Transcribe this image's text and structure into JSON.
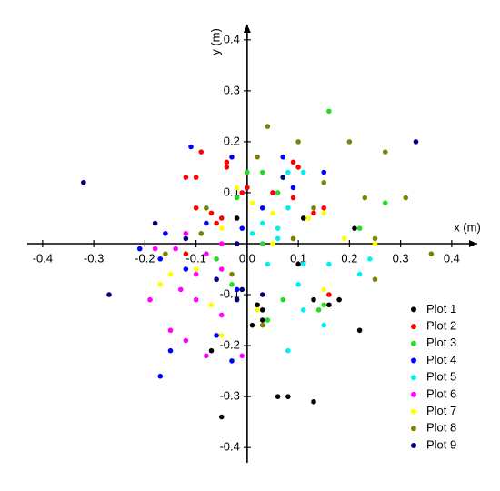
{
  "chart_data": {
    "type": "scatter",
    "x_label": "x (m)",
    "y_label": "y (m)",
    "xlim": [
      -0.43,
      0.45
    ],
    "ylim": [
      -0.43,
      0.43
    ],
    "xticks": [
      -0.4,
      -0.3,
      -0.2,
      -0.1,
      {
        "value": 0,
        "label": "0.0"
      },
      0.1,
      0.2,
      0.3,
      0.4
    ],
    "yticks": [
      -0.4,
      -0.3,
      -0.2,
      -0.1,
      0.1,
      0.2,
      0.3,
      0.4
    ],
    "legend": "lower right",
    "series": [
      {
        "name": "Plot 1",
        "color": "#000000",
        "x": [
          -0.05,
          0.06,
          0.08,
          0.13,
          0.22,
          0.18,
          0.16,
          0.03,
          0.02,
          0.03,
          0.01,
          0.13,
          0.11,
          -0.02,
          -0.07,
          0.21,
          0.1
        ],
        "values": [
          -0.34,
          -0.3,
          -0.3,
          -0.31,
          -0.17,
          -0.11,
          -0.12,
          -0.13,
          -0.12,
          -0.15,
          -0.16,
          -0.11,
          0.05,
          0.05,
          -0.21,
          0.03,
          -0.04
        ]
      },
      {
        "name": "Plot 2",
        "color": "#ff0000",
        "x": [
          -0.09,
          -0.12,
          -0.1,
          -0.04,
          -0.04,
          0.0,
          -0.01,
          0.09,
          0.1,
          0.05,
          0.09,
          -0.1,
          -0.07,
          -0.05,
          0.15,
          0.13,
          -0.12,
          -0.06,
          0.16
        ],
        "values": [
          0.18,
          0.13,
          0.13,
          0.15,
          0.16,
          0.11,
          0.1,
          0.16,
          0.15,
          0.1,
          0.09,
          0.07,
          0.06,
          0.05,
          0.07,
          0.06,
          -0.02,
          0.04,
          -0.1
        ]
      },
      {
        "name": "Plot 3",
        "color": "#22dd22",
        "x": [
          0.16,
          0.03,
          0.0,
          -0.02,
          0.06,
          0.27,
          0.22,
          0.14,
          0.04,
          -0.03,
          -0.06,
          0.03,
          0.15,
          0.07
        ],
        "values": [
          0.26,
          0.14,
          0.14,
          0.09,
          0.1,
          0.08,
          0.03,
          -0.13,
          -0.15,
          -0.08,
          -0.03,
          0.0,
          -0.12,
          -0.11
        ]
      },
      {
        "name": "Plot 4",
        "color": "#0000ff",
        "x": [
          -0.11,
          -0.03,
          -0.21,
          -0.17,
          -0.17,
          -0.15,
          -0.12,
          -0.06,
          -0.03,
          -0.02,
          0.07,
          0.15,
          -0.16,
          -0.08,
          0.03,
          -0.01,
          0.09
        ],
        "values": [
          0.19,
          0.17,
          -0.01,
          -0.03,
          -0.26,
          -0.21,
          -0.05,
          -0.18,
          -0.23,
          -0.09,
          0.17,
          0.14,
          0.02,
          0.04,
          0.07,
          0.03,
          0.11
        ]
      },
      {
        "name": "Plot 5",
        "color": "#00f0f0",
        "x": [
          0.08,
          0.07,
          0.11,
          0.06,
          0.06,
          0.08,
          0.04,
          0.1,
          0.11,
          0.08,
          0.15,
          0.22,
          0.24,
          0.16,
          0.03,
          0.01,
          0.11
        ],
        "values": [
          0.14,
          0.13,
          0.14,
          0.03,
          0.01,
          0.07,
          -0.04,
          -0.08,
          -0.13,
          -0.21,
          -0.16,
          -0.06,
          -0.03,
          -0.04,
          0.04,
          0.02,
          -0.04
        ]
      },
      {
        "name": "Plot 6",
        "color": "#ff00ff",
        "x": [
          -0.14,
          -0.12,
          -0.1,
          -0.13,
          -0.1,
          -0.15,
          -0.12,
          -0.08,
          -0.05,
          -0.01,
          -0.05,
          -0.19,
          -0.18,
          -0.05,
          -0.08
        ],
        "values": [
          -0.01,
          0.02,
          -0.06,
          -0.09,
          -0.11,
          -0.17,
          -0.19,
          -0.22,
          -0.05,
          -0.22,
          -0.14,
          -0.11,
          -0.01,
          0.0,
          -0.02
        ]
      },
      {
        "name": "Plot 7",
        "color": "#ffff00",
        "x": [
          -0.17,
          -0.15,
          -0.1,
          -0.02,
          0.01,
          0.05,
          -0.05,
          -0.05,
          0.15,
          0.25,
          0.19,
          0.15,
          0.12,
          0.05,
          0.02,
          -0.07
        ],
        "values": [
          -0.08,
          -0.06,
          -0.05,
          0.11,
          0.08,
          0.06,
          0.03,
          -0.18,
          -0.09,
          0.0,
          0.01,
          0.06,
          0.05,
          0.0,
          -0.13,
          -0.12
        ]
      },
      {
        "name": "Plot 8",
        "color": "#808000",
        "x": [
          0.04,
          0.1,
          0.2,
          0.27,
          0.02,
          0.15,
          0.23,
          0.31,
          0.25,
          0.36,
          0.25,
          0.13,
          0.09,
          0.03,
          -0.03,
          -0.08,
          -0.16,
          -0.09
        ],
        "values": [
          0.23,
          0.2,
          0.2,
          0.18,
          0.17,
          0.12,
          0.09,
          0.09,
          0.01,
          -0.02,
          -0.07,
          0.07,
          0.01,
          -0.16,
          -0.06,
          0.07,
          -0.02,
          0.02
        ]
      },
      {
        "name": "Plot 9",
        "color": "#000080",
        "x": [
          -0.32,
          -0.27,
          0.33,
          -0.18,
          0.07,
          -0.06,
          -0.01,
          -0.02,
          0.03,
          -0.02,
          -0.12
        ],
        "values": [
          0.12,
          -0.1,
          0.2,
          0.04,
          0.13,
          -0.07,
          -0.09,
          -0.11,
          -0.1,
          0.0,
          0.01
        ]
      }
    ]
  }
}
